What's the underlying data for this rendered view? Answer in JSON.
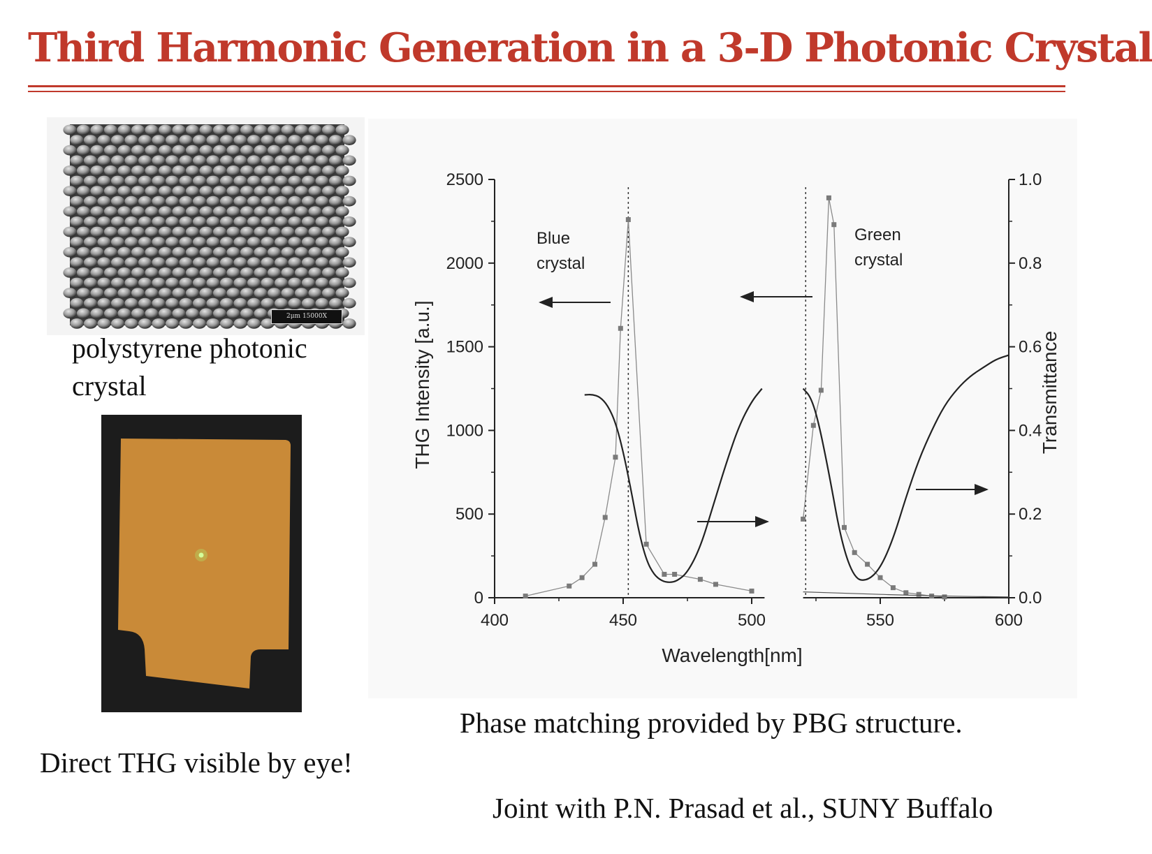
{
  "title": "Third Harmonic Generation in a 3-D Photonic Crystal",
  "sem_image": {
    "scale_label": "2μm 15000X"
  },
  "captions": {
    "sem_line1": "polystyrene photonic",
    "sem_line2": "crystal",
    "photo": "Direct THG visible by eye!",
    "phase": "Phase matching provided by PBG structure.",
    "credit": "Joint with P.N. Prasad et al., SUNY Buffalo"
  },
  "colors": {
    "title": "#c0392b",
    "photo_sample": "#c98a38",
    "thg_spot": "#aeea6c"
  },
  "chart_data": {
    "type": "line",
    "xlabel": "Wavelength[nm]",
    "ylabel": "THG Intensity [a.u.]",
    "y2label": "Transmittance",
    "xlim": [
      400,
      600
    ],
    "ylim": [
      0,
      2500
    ],
    "y2lim": [
      0.0,
      1.0
    ],
    "x_ticks": [
      "400",
      "450",
      "500",
      "550",
      "600"
    ],
    "y_ticks": [
      "0",
      "500",
      "1000",
      "1500",
      "2000",
      "2500"
    ],
    "y2_ticks": [
      "0.0",
      "0.2",
      "0.4",
      "0.6",
      "0.8",
      "1.0"
    ],
    "axis_break": [
      505,
      520
    ],
    "annotations": {
      "blue": [
        "Blue",
        "crystal"
      ],
      "green": [
        "Green",
        "crystal"
      ]
    },
    "vlines": [
      452,
      521
    ],
    "series": [
      {
        "axis": "left",
        "style": "markers",
        "x": [
          412,
          429,
          434,
          439,
          443,
          447,
          449,
          452,
          459,
          466,
          470,
          480,
          486,
          500
        ],
        "y": [
          10,
          70,
          120,
          200,
          480,
          840,
          1610,
          2260,
          320,
          140,
          140,
          110,
          80,
          40
        ]
      },
      {
        "axis": "right",
        "style": "line",
        "x": [
          435,
          438,
          441,
          444,
          447,
          450,
          453,
          456,
          459,
          462,
          465,
          468,
          471,
          475,
          480,
          485,
          490,
          495,
          500,
          504
        ],
        "y": [
          0.485,
          0.486,
          0.48,
          0.46,
          0.42,
          0.35,
          0.26,
          0.16,
          0.09,
          0.055,
          0.04,
          0.036,
          0.04,
          0.06,
          0.12,
          0.22,
          0.32,
          0.41,
          0.47,
          0.5
        ]
      },
      {
        "axis": "left",
        "style": "markers",
        "x": [
          520,
          524,
          527,
          530,
          532,
          536,
          540,
          545,
          550,
          555,
          560,
          565,
          570,
          575
        ],
        "y": [
          470,
          1030,
          1240,
          2390,
          2230,
          420,
          270,
          200,
          120,
          60,
          30,
          20,
          10,
          5
        ]
      },
      {
        "axis": "right",
        "style": "line",
        "x": [
          520,
          523,
          526,
          530,
          535,
          540,
          545,
          550,
          555,
          560,
          565,
          570,
          575,
          580,
          585,
          590,
          595,
          600
        ],
        "y": [
          0.5,
          0.48,
          0.42,
          0.3,
          0.13,
          0.045,
          0.04,
          0.07,
          0.14,
          0.24,
          0.33,
          0.4,
          0.46,
          0.5,
          0.53,
          0.55,
          0.57,
          0.58
        ]
      },
      {
        "axis": "left",
        "style": "line",
        "x": [
          520,
          540,
          560,
          580,
          600
        ],
        "y": [
          35,
          25,
          15,
          8,
          5
        ]
      }
    ]
  }
}
